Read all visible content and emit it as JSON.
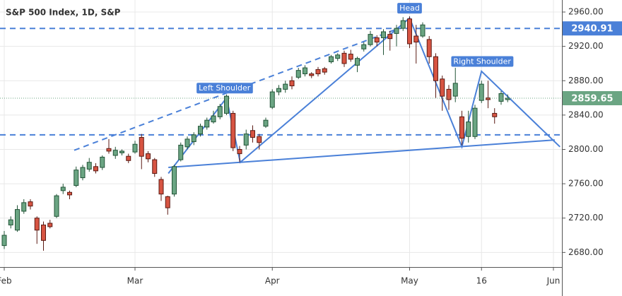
{
  "chart_data": {
    "type": "candlestick",
    "title": "S&P 500 Index, 1D, S&P",
    "open": [
      2688,
      2712,
      2706,
      2728,
      2739,
      2720,
      2712,
      2714,
      2722,
      2752,
      2750,
      2758,
      2767,
      2777,
      2780,
      2779,
      2801,
      2793,
      2796,
      2792,
      2797,
      2814,
      2795,
      2788,
      2765,
      2745,
      2748,
      2788,
      2803,
      2809,
      2818,
      2826,
      2832,
      2838,
      2842,
      2842,
      2800,
      2805,
      2822,
      2815,
      2827,
      2849,
      2867,
      2870,
      2880,
      2884,
      2888,
      2888,
      2893,
      2894,
      2902,
      2906,
      2912,
      2911,
      2898,
      2917,
      2922,
      2930,
      2930,
      2934,
      2935,
      2941,
      2952,
      2932,
      2932,
      2928,
      2908,
      2882,
      2870,
      2862,
      2838,
      2815,
      2815,
      2857,
      2860,
      2842,
      2856,
      2858
    ],
    "high": [
      2705,
      2722,
      2735,
      2742,
      2742,
      2722,
      2716,
      2718,
      2748,
      2760,
      2752,
      2780,
      2782,
      2790,
      2784,
      2793,
      2812,
      2803,
      2800,
      2795,
      2810,
      2818,
      2798,
      2790,
      2768,
      2746,
      2782,
      2808,
      2815,
      2820,
      2830,
      2837,
      2845,
      2853,
      2864,
      2845,
      2804,
      2823,
      2828,
      2818,
      2837,
      2870,
      2875,
      2880,
      2885,
      2895,
      2898,
      2890,
      2896,
      2896,
      2910,
      2912,
      2915,
      2916,
      2908,
      2925,
      2938,
      2933,
      2940,
      2938,
      2945,
      2954,
      2955,
      2945,
      2948,
      2932,
      2912,
      2886,
      2875,
      2895,
      2845,
      2845,
      2852,
      2880,
      2880,
      2848,
      2868,
      2864
    ],
    "low": [
      2684,
      2708,
      2704,
      2725,
      2730,
      2690,
      2682,
      2708,
      2720,
      2748,
      2742,
      2756,
      2764,
      2774,
      2772,
      2776,
      2795,
      2789,
      2793,
      2784,
      2795,
      2777,
      2785,
      2768,
      2740,
      2724,
      2745,
      2786,
      2800,
      2805,
      2815,
      2823,
      2830,
      2835,
      2840,
      2798,
      2785,
      2800,
      2808,
      2800,
      2825,
      2847,
      2863,
      2866,
      2870,
      2882,
      2885,
      2883,
      2885,
      2887,
      2900,
      2903,
      2896,
      2902,
      2890,
      2914,
      2920,
      2920,
      2910,
      2915,
      2920,
      2938,
      2918,
      2900,
      2930,
      2900,
      2860,
      2845,
      2846,
      2855,
      2805,
      2808,
      2812,
      2854,
      2848,
      2830,
      2852,
      2855
    ],
    "close": [
      2700,
      2718,
      2730,
      2738,
      2734,
      2706,
      2694,
      2710,
      2746,
      2756,
      2747,
      2776,
      2779,
      2785,
      2775,
      2791,
      2798,
      2799,
      2798,
      2787,
      2806,
      2792,
      2789,
      2772,
      2748,
      2732,
      2780,
      2805,
      2812,
      2817,
      2827,
      2834,
      2839,
      2850,
      2862,
      2802,
      2795,
      2818,
      2814,
      2808,
      2834,
      2867,
      2871,
      2876,
      2874,
      2892,
      2895,
      2886,
      2888,
      2890,
      2908,
      2910,
      2900,
      2905,
      2906,
      2922,
      2934,
      2925,
      2937,
      2929,
      2941,
      2950,
      2923,
      2925,
      2945,
      2908,
      2880,
      2862,
      2858,
      2877,
      2813,
      2832,
      2848,
      2876,
      2858,
      2838,
      2865,
      2859.65
    ],
    "up_color": "#6ba583",
    "up_border": "#225437",
    "down_color": "#d75442",
    "down_border": "#5b1a13",
    "line_color": "#4a80d8",
    "xlim": [
      -0.65,
      85.3
    ],
    "ylim": [
      2663,
      2974
    ],
    "xticks": [
      {
        "value": 0,
        "label": "Feb"
      },
      {
        "value": 20,
        "label": "Mar"
      },
      {
        "value": 41,
        "label": "Apr"
      },
      {
        "value": 62,
        "label": "May"
      },
      {
        "value": 73,
        "label": "16"
      },
      {
        "value": 84,
        "label": "Jun"
      }
    ],
    "yticks": [
      {
        "value": 2680,
        "label": "2680.00"
      },
      {
        "value": 2720,
        "label": "2720.00"
      },
      {
        "value": 2760,
        "label": "2760.00"
      },
      {
        "value": 2800,
        "label": "2800.00"
      },
      {
        "value": 2840,
        "label": "2840.00"
      },
      {
        "value": 2880,
        "label": "2880.00"
      },
      {
        "value": 2920,
        "label": "2920.00"
      },
      {
        "value": 2960,
        "label": "2960.00"
      }
    ],
    "grid": true,
    "hlines": [
      {
        "value": 2940.91,
        "style": "dashed",
        "label": true
      },
      {
        "value": 2817,
        "style": "dashed",
        "label": false
      }
    ],
    "last_price_line": true,
    "lines": [
      {
        "style": "solid",
        "x": [
          25.1,
          84.2
        ],
        "y": [
          2779,
          2811
        ]
      },
      {
        "style": "solid",
        "x": [
          25.1,
          34.0,
          36.1,
          62.0,
          70.0,
          73.0,
          85.0
        ],
        "y": [
          2772,
          2860,
          2785,
          2953,
          2803,
          2891,
          2803
        ]
      },
      {
        "style": "dashed",
        "x": [
          10.7,
          60.0
        ],
        "y": [
          2799,
          2940
        ]
      }
    ],
    "annotations": [
      {
        "text": "Left Shoulder",
        "x": 33.7,
        "y": 2871
      },
      {
        "text": "Head",
        "x": 62,
        "y": 2964
      },
      {
        "text": "Right Shoulder",
        "x": 73.1,
        "y": 2902
      }
    ]
  }
}
